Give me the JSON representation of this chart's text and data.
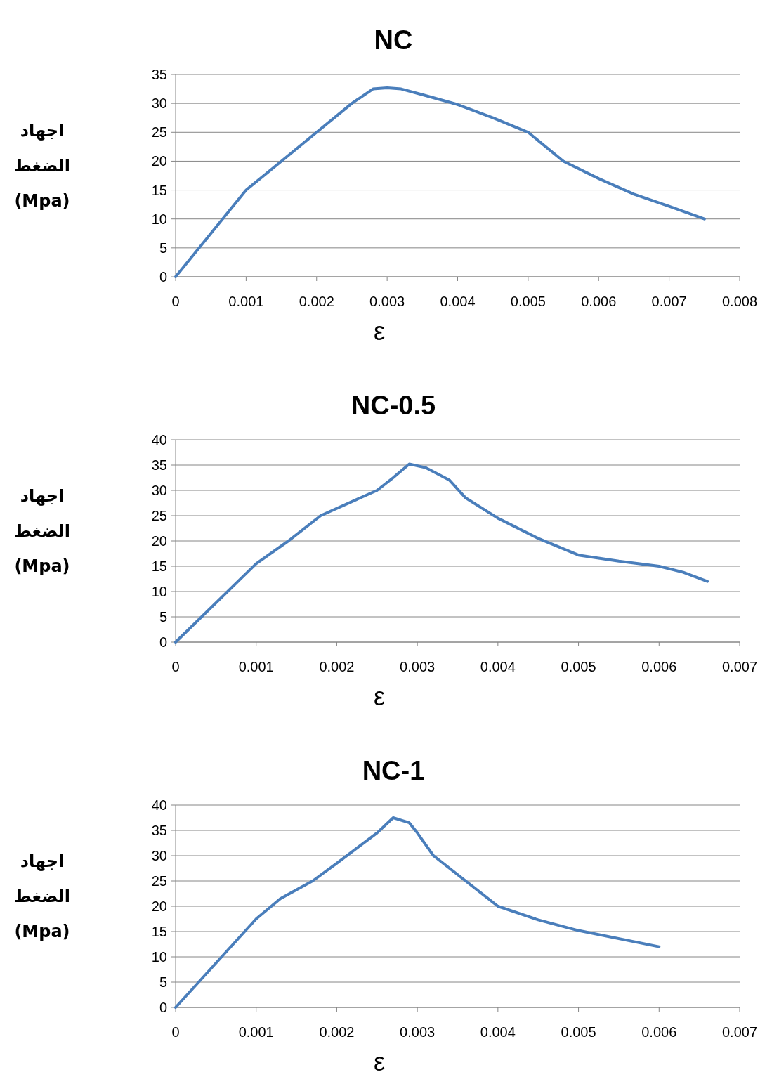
{
  "chart_data": [
    {
      "type": "line",
      "title": "NC",
      "xlabel": "ε",
      "ylabel": "اجهاد الضغط (Mpa)",
      "xlim": [
        0,
        0.008
      ],
      "xticks": [
        0,
        0.001,
        0.002,
        0.003,
        0.004,
        0.005,
        0.006,
        0.007,
        0.008
      ],
      "ylim": [
        0,
        35
      ],
      "yticks": [
        0,
        5,
        10,
        15,
        20,
        25,
        30,
        35
      ],
      "grid": "y",
      "marker": "none",
      "line_style": "solid",
      "series": [
        {
          "color": "#4a7ebb",
          "x": [
            0,
            0.001,
            0.0015,
            0.002,
            0.0025,
            0.0028,
            0.003,
            0.0032,
            0.0035,
            0.004,
            0.0045,
            0.005,
            0.0055,
            0.006,
            0.0065,
            0.007,
            0.0075
          ],
          "values": [
            0,
            15,
            20,
            25,
            30,
            32.5,
            32.7,
            32.5,
            31.5,
            29.8,
            27.5,
            25,
            20,
            17,
            14.3,
            12.2,
            10
          ]
        }
      ]
    },
    {
      "type": "line",
      "title": "NC-0.5",
      "xlabel": "ε",
      "ylabel": "اجهاد الضغط (Mpa)",
      "xlim": [
        0,
        0.007
      ],
      "xticks": [
        0,
        0.001,
        0.002,
        0.003,
        0.004,
        0.005,
        0.006,
        0.007
      ],
      "ylim": [
        0,
        40
      ],
      "yticks": [
        0,
        5,
        10,
        15,
        20,
        25,
        30,
        35,
        40
      ],
      "grid": "y",
      "marker": "none",
      "line_style": "solid",
      "series": [
        {
          "color": "#4a7ebb",
          "x": [
            0,
            0.001,
            0.0014,
            0.0018,
            0.0025,
            0.0027,
            0.0029,
            0.0031,
            0.0034,
            0.0036,
            0.004,
            0.0045,
            0.005,
            0.0055,
            0.006,
            0.0063,
            0.0066
          ],
          "values": [
            0,
            15.5,
            20,
            25,
            30,
            32.5,
            35.2,
            34.5,
            32,
            28.5,
            24.5,
            20.5,
            17.2,
            16,
            15,
            13.8,
            12
          ]
        }
      ]
    },
    {
      "type": "line",
      "title": "NC-1",
      "xlabel": "ε",
      "ylabel": "اجهاد الضغط (Mpa)",
      "xlim": [
        0,
        0.007
      ],
      "xticks": [
        0,
        0.001,
        0.002,
        0.003,
        0.004,
        0.005,
        0.006,
        0.007
      ],
      "ylim": [
        0,
        40
      ],
      "yticks": [
        0,
        5,
        10,
        15,
        20,
        25,
        30,
        35,
        40
      ],
      "grid": "y",
      "marker": "none",
      "line_style": "solid",
      "series": [
        {
          "color": "#4a7ebb",
          "x": [
            0,
            0.001,
            0.0013,
            0.0017,
            0.002,
            0.0025,
            0.0027,
            0.0029,
            0.003,
            0.0032,
            0.0036,
            0.004,
            0.0045,
            0.005,
            0.006
          ],
          "values": [
            0,
            17.5,
            21.5,
            25,
            28.5,
            34.5,
            37.5,
            36.5,
            34.5,
            30,
            25,
            20,
            17.3,
            15.2,
            12
          ]
        }
      ]
    }
  ]
}
